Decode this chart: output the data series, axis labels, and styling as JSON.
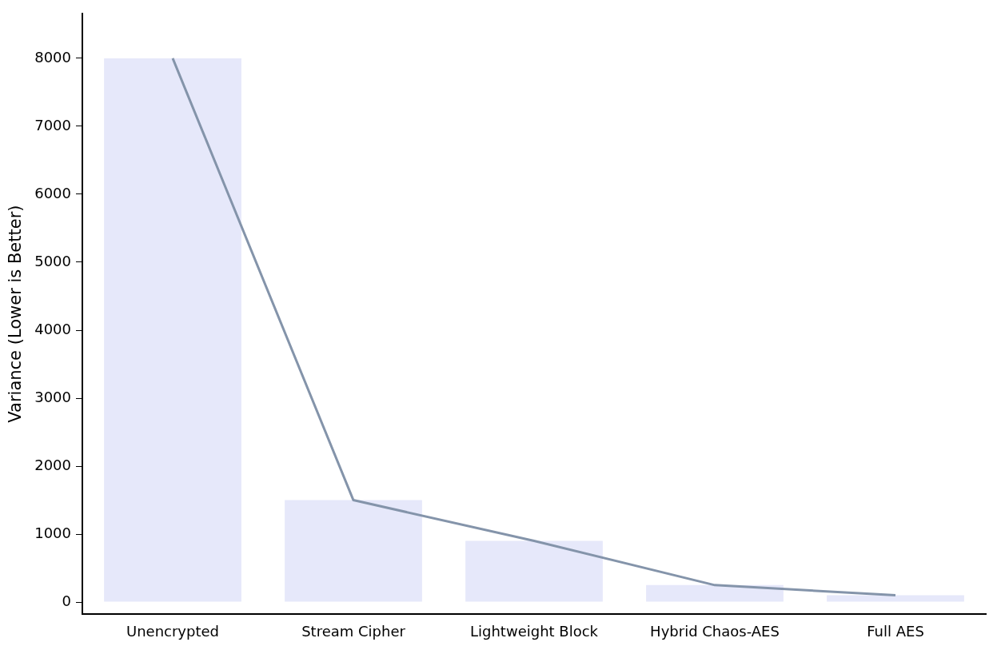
{
  "chart_data": {
    "type": "bar",
    "ylabel": "Variance (Lower is Better)",
    "categories": [
      "Unencrypted",
      "Stream Cipher",
      "Lightweight Block",
      "Hybrid Chaos-AES",
      "Full AES"
    ],
    "series": [
      {
        "type": "bar",
        "color": "#e6e8fa",
        "values": [
          8000,
          1500,
          900,
          250,
          100
        ]
      },
      {
        "type": "line",
        "color": "#8494aa",
        "values": [
          8000,
          1500,
          900,
          250,
          100
        ]
      }
    ],
    "ylim": [
      -180,
      8660
    ],
    "yticks": [
      0,
      1000,
      2000,
      3000,
      4000,
      5000,
      6000,
      7000,
      8000
    ],
    "grid": false,
    "legend": false,
    "marker": "none",
    "line_style": "solid"
  }
}
